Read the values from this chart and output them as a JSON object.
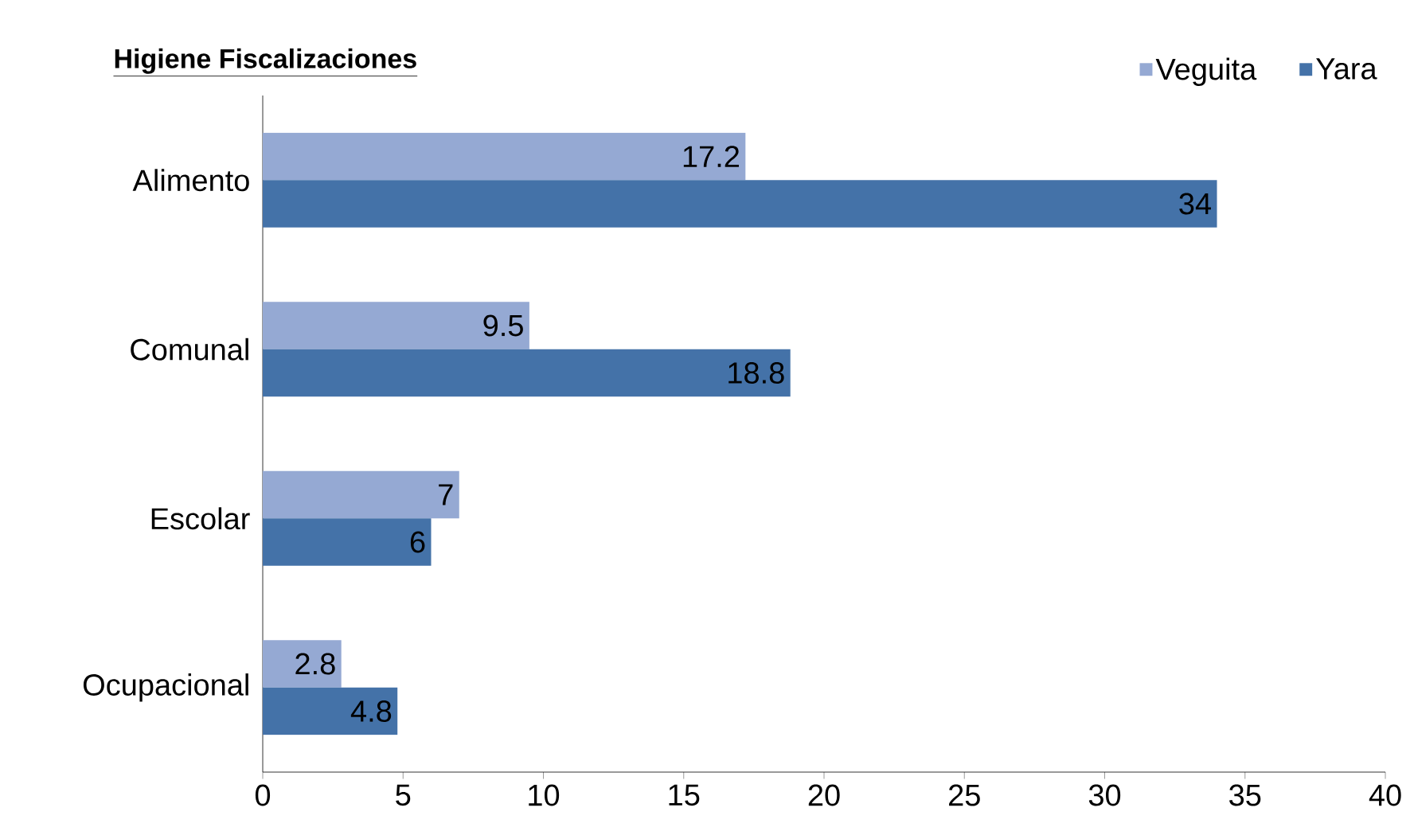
{
  "chart_data": {
    "type": "bar",
    "orientation": "horizontal",
    "title": "Higiene Fiscalizaciones",
    "categories": [
      "Alimento",
      "Comunal",
      "Escolar",
      "Ocupacional"
    ],
    "series": [
      {
        "name": "Veguita",
        "color": "#95a9d3",
        "values": [
          17.2,
          9.5,
          7,
          2.8
        ]
      },
      {
        "name": "Yara",
        "color": "#4472a8",
        "values": [
          34,
          18.8,
          6,
          4.8
        ]
      }
    ],
    "xlim": [
      0,
      40
    ],
    "xticks": [
      0,
      5,
      10,
      15,
      20,
      25,
      30,
      35,
      40
    ],
    "data_labels": true,
    "legend": "top right"
  }
}
